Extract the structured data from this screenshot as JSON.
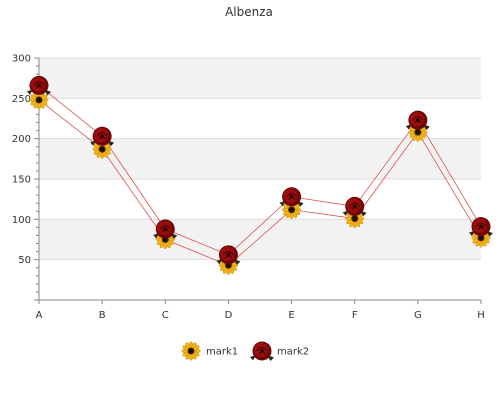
{
  "chart_data": {
    "type": "line",
    "title": "Albenza",
    "categories": [
      "A",
      "B",
      "C",
      "D",
      "E",
      "F",
      "G",
      "H"
    ],
    "yticks": [
      50,
      100,
      150,
      200,
      250,
      300
    ],
    "ylim": [
      0,
      300
    ],
    "grid": true,
    "legend_position": "bottom",
    "series": [
      {
        "name": "mark1",
        "values": [
          248,
          187,
          75,
          43,
          112,
          101,
          208,
          77
        ],
        "color": "#f2b418",
        "marker": "sunflower-icon"
      },
      {
        "name": "mark2",
        "values": [
          266,
          203,
          88,
          56,
          128,
          116,
          223,
          91
        ],
        "color": "#8b0a0a",
        "marker": "rose-icon"
      }
    ],
    "line_color": "#d9534f"
  }
}
